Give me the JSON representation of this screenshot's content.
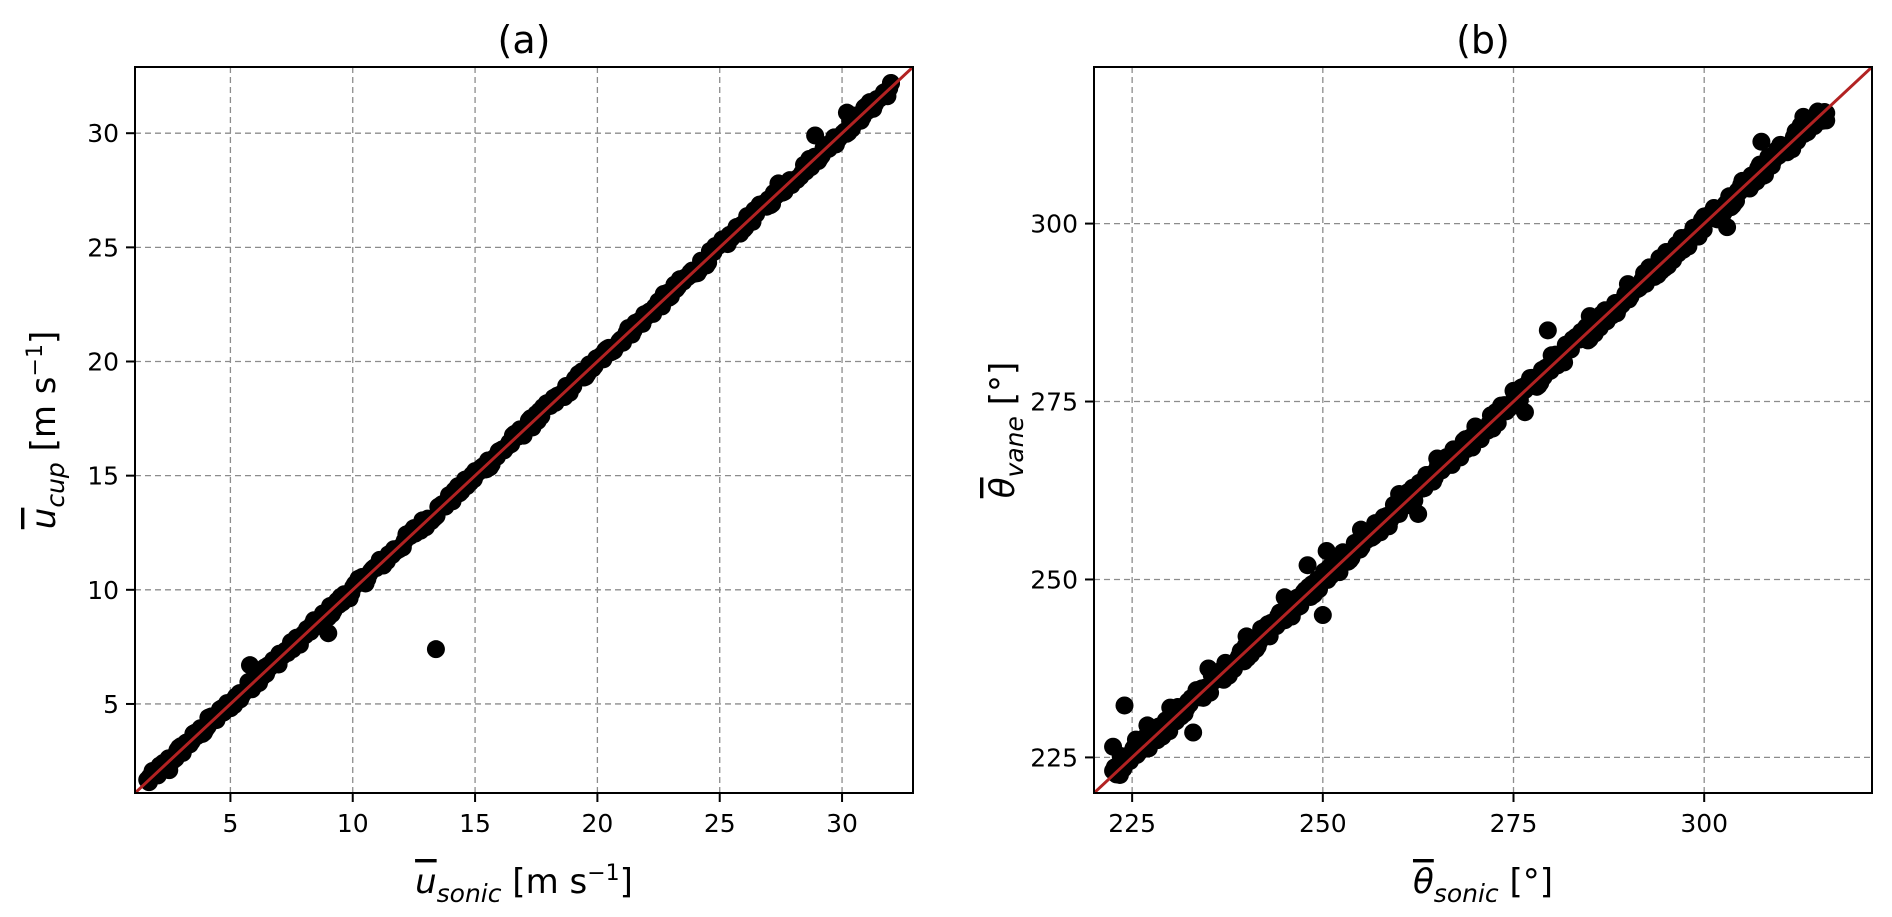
{
  "chart_data": [
    {
      "type": "scatter",
      "title": "(a)",
      "xlabel": {
        "base": "u",
        "sub": "sonic",
        "unit_pre": "[m s",
        "unit_sup": "−1",
        "unit_post": "]"
      },
      "ylabel": {
        "base": "u",
        "sub": "cup",
        "unit_pre": "[m s",
        "unit_sup": "−1",
        "unit_post": "]"
      },
      "xlim": [
        1.1,
        32.9
      ],
      "ylim": [
        1.1,
        32.9
      ],
      "xticks": [
        5,
        10,
        15,
        20,
        25,
        30
      ],
      "yticks": [
        5,
        10,
        15,
        20,
        25,
        30
      ],
      "grid": true,
      "marker_color": "#000000",
      "line_color": "#b22222",
      "reference_line": "y = x",
      "scatter_band": {
        "x_start": 1.6,
        "x_end": 32.0,
        "spread": 0.25
      },
      "points": [
        [
          1.7,
          1.8
        ],
        [
          2.3,
          2.3
        ],
        [
          2.5,
          2.1
        ],
        [
          3.2,
          3.3
        ],
        [
          4.1,
          4.4
        ],
        [
          5.4,
          5.2
        ],
        [
          5.8,
          6.7
        ],
        [
          6.4,
          6.6
        ],
        [
          7.0,
          7.2
        ],
        [
          8.3,
          8.3
        ],
        [
          9.0,
          8.1
        ],
        [
          10.1,
          10.2
        ],
        [
          12.5,
          12.7
        ],
        [
          15.0,
          15.2
        ],
        [
          17.5,
          17.7
        ],
        [
          20.0,
          20.1
        ],
        [
          22.5,
          22.6
        ],
        [
          25.1,
          25.3
        ],
        [
          27.4,
          27.8
        ],
        [
          28.9,
          29.9
        ],
        [
          30.2,
          30.9
        ],
        [
          31.0,
          31.2
        ],
        [
          32.0,
          32.2
        ],
        [
          13.4,
          7.4
        ]
      ]
    },
    {
      "type": "scatter",
      "title": "(b)",
      "xlabel": {
        "base": "θ",
        "sub": "sonic",
        "unit_pre": "[°]",
        "unit_sup": "",
        "unit_post": ""
      },
      "ylabel": {
        "base": "θ",
        "sub": "vane",
        "unit_pre": "[°]",
        "unit_sup": "",
        "unit_post": ""
      },
      "xlim": [
        220,
        322
      ],
      "ylim": [
        220,
        322
      ],
      "xticks": [
        225,
        250,
        275,
        300
      ],
      "yticks": [
        225,
        250,
        275,
        300
      ],
      "grid": true,
      "marker_color": "#000000",
      "line_color": "#b22222",
      "reference_line": "y = x",
      "scatter_band": {
        "x_start": 222.5,
        "x_end": 316,
        "spread": 1.2
      },
      "points": [
        [
          222.5,
          226.5
        ],
        [
          223.5,
          225.2
        ],
        [
          224.0,
          232.3
        ],
        [
          225.5,
          227.5
        ],
        [
          227.0,
          229.5
        ],
        [
          230.0,
          232.0
        ],
        [
          233.0,
          228.5
        ],
        [
          235.0,
          237.5
        ],
        [
          240.0,
          242.0
        ],
        [
          245.0,
          247.5
        ],
        [
          248.0,
          252.0
        ],
        [
          250.0,
          245.0
        ],
        [
          250.5,
          254.0
        ],
        [
          255.0,
          257.0
        ],
        [
          260.0,
          262.0
        ],
        [
          262.5,
          259.2
        ],
        [
          265.0,
          267.0
        ],
        [
          270.0,
          271.5
        ],
        [
          275.0,
          276.5
        ],
        [
          276.5,
          273.5
        ],
        [
          277.0,
          277.5
        ],
        [
          279.5,
          285.0
        ],
        [
          280.0,
          281.5
        ],
        [
          285.0,
          287.0
        ],
        [
          290.0,
          291.5
        ],
        [
          295.0,
          296.0
        ],
        [
          300.0,
          301.0
        ],
        [
          303.0,
          299.5
        ],
        [
          305.0,
          306.0
        ],
        [
          307.5,
          311.5
        ],
        [
          310.0,
          310.5
        ],
        [
          313.0,
          315.0
        ],
        [
          316.0,
          314.5
        ]
      ]
    }
  ]
}
